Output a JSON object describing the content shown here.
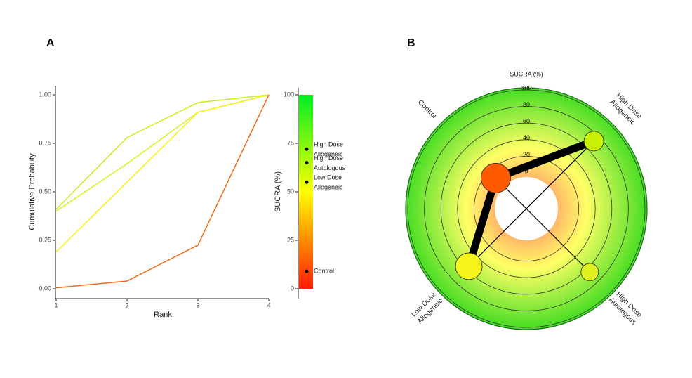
{
  "panel_labels": [
    "A",
    "B"
  ],
  "chart_data": [
    {
      "type": "line",
      "x": [
        1,
        2,
        3,
        4
      ],
      "xlim": [
        1,
        4
      ],
      "xticks": [
        1,
        2,
        3,
        4
      ],
      "x_label": "Rank",
      "ylim": [
        0,
        1
      ],
      "y_label": "Cumulative Probability",
      "yticks": [
        {
          "value": 0,
          "label": "0.00"
        },
        {
          "value": 0.25,
          "label": "0.25"
        },
        {
          "value": 0.5,
          "label": "0.50"
        },
        {
          "value": 0.75,
          "label": "0.75"
        },
        {
          "value": 1,
          "label": "1.00"
        }
      ],
      "series": [
        {
          "color": "#c6ee1e",
          "values": [
            0.41,
            0.78,
            0.96,
            1
          ]
        },
        {
          "color": "#dcf022",
          "values": [
            0.4,
            0.645,
            0.91,
            1
          ]
        },
        {
          "color": "#f2f21a",
          "values": [
            0.19,
            0.55,
            0.91,
            1
          ]
        },
        {
          "color": "#f26a1a",
          "values": [
            0.005,
            0.04,
            0.225,
            1
          ]
        }
      ]
    },
    {
      "type": "colorbar",
      "y_label": "SUCRA (%)",
      "ylim": [
        0,
        100
      ],
      "yticks": [
        0,
        25,
        50,
        75,
        100
      ],
      "colors": [
        "#ff1a00",
        "#ffff00",
        "#00ee22"
      ],
      "treatments": [
        {
          "name": [
            "High Dose",
            "Allogeneic"
          ],
          "value": 72
        },
        {
          "name": [
            "High Dose",
            "Autologous"
          ],
          "value": 65
        },
        {
          "name": [
            "Low Dose",
            "Allogeneic"
          ],
          "value": 55
        },
        {
          "name": [
            "Control"
          ],
          "value": 9
        }
      ]
    },
    {
      "type": "radial",
      "axis_label": "SUCRA (%)",
      "rlim": [
        0,
        100
      ],
      "rticks": [
        0,
        20,
        40,
        60,
        80,
        100
      ],
      "colors": [
        "#ff6b6b",
        "#ffff66",
        "#44dd22"
      ],
      "nodes": [
        {
          "name": [
            "Control"
          ],
          "sucra": 9,
          "size": 441,
          "color": "#ff5a00"
        },
        {
          "name": [
            "High Dose",
            "Allogeneic"
          ],
          "sucra": 72,
          "size": 196,
          "color": "#c8f000"
        },
        {
          "name": [
            "High Dose",
            "Autologous"
          ],
          "sucra": 65,
          "size": 156,
          "color": "#e0f020"
        },
        {
          "name": [
            "Low Dose",
            "Allogeneic"
          ],
          "sucra": 55,
          "size": 361,
          "color": "#f4f41a"
        }
      ],
      "edges": [
        {
          "from": 0,
          "to": 1,
          "weight": 3
        },
        {
          "from": 0,
          "to": 3,
          "weight": 3
        },
        {
          "from": 0,
          "to": 2,
          "weight": 1
        },
        {
          "from": 1,
          "to": 3,
          "weight": 1
        }
      ]
    }
  ]
}
